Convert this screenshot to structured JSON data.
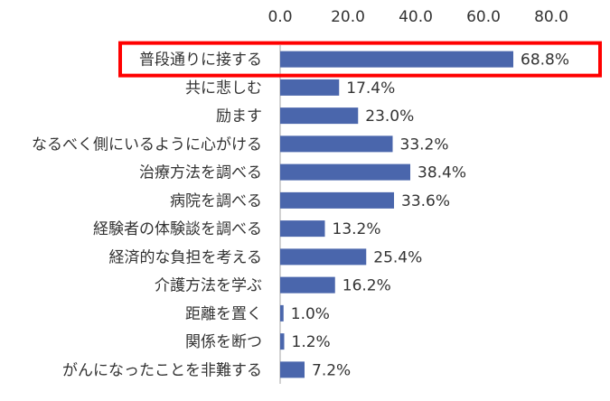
{
  "chart_data": {
    "type": "bar",
    "orientation": "horizontal",
    "x_ticks": [
      "0.0",
      "20.0",
      "40.0",
      "60.0",
      "80.0"
    ],
    "xlim": [
      0,
      80
    ],
    "grid": false,
    "legend": "none",
    "categories": [
      "普段通りに接する",
      "共に悲しむ",
      "励ます",
      "なるべく側にいるように心がける",
      "治療方法を調べる",
      "病院を調べる",
      "経験者の体験談を調べる",
      "経済的な負担を考える",
      "介護方法を学ぶ",
      "距離を置く",
      "関係を断つ",
      "がんになったことを非難する"
    ],
    "values": [
      68.8,
      17.4,
      23.0,
      33.2,
      38.4,
      33.6,
      13.2,
      25.4,
      16.2,
      1.0,
      1.2,
      7.2
    ],
    "value_labels": [
      "68.8%",
      "17.4%",
      "23.0%",
      "33.2%",
      "38.4%",
      "33.6%",
      "13.2%",
      "25.4%",
      "16.2%",
      "1.0%",
      "1.2%",
      "7.2%"
    ],
    "highlighted_category": "普段通りに接する",
    "colors": {
      "bar": "#4a66ac",
      "axis": "#a6a6a6",
      "highlight_box": "#ff0000",
      "text": "#333333"
    }
  }
}
